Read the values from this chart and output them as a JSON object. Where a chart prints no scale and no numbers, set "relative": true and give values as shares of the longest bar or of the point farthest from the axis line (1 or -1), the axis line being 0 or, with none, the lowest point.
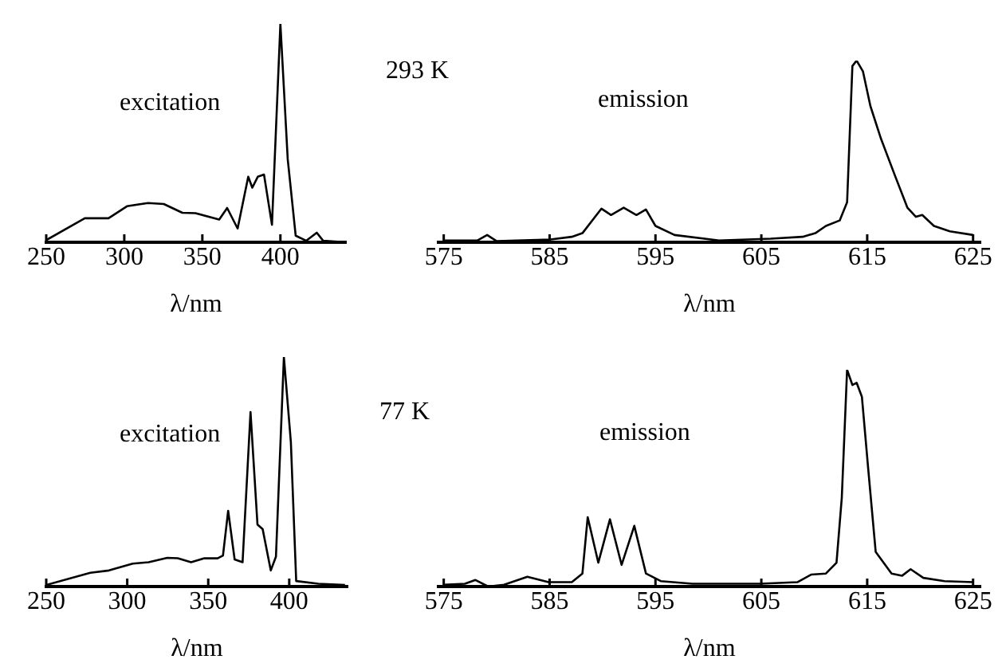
{
  "chart_data": [
    {
      "type": "line",
      "relative": true,
      "xlabel": "λ/nm",
      "annotations": [
        "excitation"
      ],
      "color": "#000000",
      "xlim": [
        250,
        442
      ],
      "xticks": [
        250,
        300,
        350,
        400
      ],
      "x": [
        250,
        274.7,
        289.9,
        301.7,
        315.2,
        325.3,
        337.2,
        345.6,
        360.8,
        365.9,
        372.6,
        379.4,
        382,
        385.5,
        389.5,
        394.6,
        400,
        404.7,
        409.8,
        416.6,
        423.3,
        427.4,
        438.5
      ],
      "values": [
        0.01,
        0.11,
        0.11,
        0.165,
        0.18,
        0.175,
        0.135,
        0.133,
        0.104,
        0.157,
        0.063,
        0.3,
        0.25,
        0.3,
        0.31,
        0.08,
        1,
        0.38,
        0.03,
        0.007,
        0.044,
        0.007,
        0.002
      ]
    },
    {
      "type": "line",
      "relative": true,
      "xlabel": "λ/nm",
      "annotations": [
        "293 K",
        "emission"
      ],
      "color": "#000000",
      "xlim": [
        574.5,
        625.7
      ],
      "xticks": [
        575,
        585,
        595,
        605,
        615,
        625
      ],
      "x": [
        575,
        578.2,
        579.1,
        580,
        585.1,
        587.1,
        588.1,
        589.9,
        590.8,
        592,
        593.2,
        594.1,
        595,
        596.8,
        601,
        605.9,
        608.9,
        610.1,
        611.1,
        612.4,
        613.1,
        613.6,
        614,
        614.6,
        615.3,
        616.3,
        617.6,
        618.8,
        619.6,
        620.2,
        621.3,
        622.8,
        625
      ],
      "values": [
        0.01,
        0.01,
        0.04,
        0.006,
        0.015,
        0.03,
        0.05,
        0.185,
        0.15,
        0.19,
        0.15,
        0.18,
        0.09,
        0.04,
        0.01,
        0.02,
        0.03,
        0.05,
        0.09,
        0.12,
        0.22,
        0.97,
        1,
        0.94,
        0.75,
        0.57,
        0.37,
        0.19,
        0.14,
        0.15,
        0.09,
        0.06,
        0.04
      ]
    },
    {
      "type": "line",
      "relative": true,
      "xlabel": "λ/nm",
      "annotations": [
        "excitation"
      ],
      "color": "#000000",
      "xlim": [
        250,
        436
      ],
      "xticks": [
        250,
        300,
        350,
        400
      ],
      "x": [
        250,
        277.2,
        288.7,
        303.4,
        313.2,
        324.7,
        331.2,
        339.4,
        347.6,
        355.8,
        359.1,
        362.3,
        366.3,
        371.2,
        376.1,
        380.4,
        383.6,
        388.6,
        391.8,
        396.7,
        401,
        404.3,
        418,
        434.4
      ],
      "values": [
        0.007,
        0.06,
        0.07,
        0.1,
        0.106,
        0.125,
        0.123,
        0.106,
        0.123,
        0.123,
        0.135,
        0.33,
        0.118,
        0.106,
        0.76,
        0.27,
        0.25,
        0.07,
        0.13,
        1,
        0.63,
        0.024,
        0.012,
        0.007
      ]
    },
    {
      "type": "line",
      "relative": true,
      "xlabel": "λ/nm",
      "annotations": [
        "77 K",
        "emission"
      ],
      "color": "#000000",
      "xlim": [
        574.5,
        625.7
      ],
      "xticks": [
        575,
        585,
        595,
        605,
        615,
        625
      ],
      "x": [
        575,
        577,
        578,
        579.2,
        580.7,
        582.9,
        584.9,
        587.1,
        588.1,
        588.6,
        589.6,
        590.7,
        591.8,
        593,
        594.1,
        595.5,
        598.5,
        604.9,
        608.4,
        609.7,
        611.1,
        612.1,
        612.6,
        613.1,
        613.6,
        614,
        614.5,
        615.1,
        615.8,
        617.3,
        618.3,
        619.1,
        620.3,
        622.3,
        625
      ],
      "values": [
        0.008,
        0.013,
        0.03,
        0,
        0.008,
        0.045,
        0.02,
        0.02,
        0.06,
        0.32,
        0.11,
        0.31,
        0.1,
        0.28,
        0.06,
        0.025,
        0.013,
        0.013,
        0.02,
        0.055,
        0.06,
        0.11,
        0.41,
        1,
        0.93,
        0.94,
        0.875,
        0.54,
        0.16,
        0.06,
        0.05,
        0.08,
        0.04,
        0.025,
        0.02
      ]
    }
  ]
}
